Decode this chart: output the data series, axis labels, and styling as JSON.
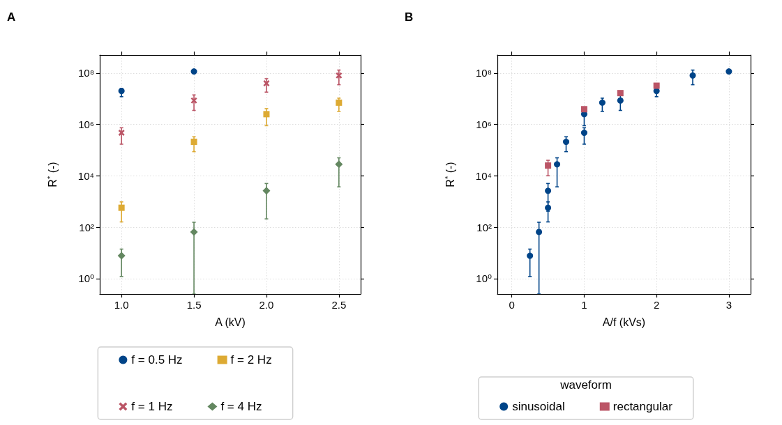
{
  "chart_data": [
    {
      "type": "scatter",
      "title": "A",
      "xlabel": "A (kV)",
      "ylabel": "R$^{*}$ (-)",
      "log": "y",
      "grid": true,
      "legend": "bottom",
      "xlim": [
        0.85,
        2.65
      ],
      "xticks": [
        {
          "value": 1,
          "label": "1.0"
        },
        {
          "value": 1.5,
          "label": "1.5"
        },
        {
          "value": 2,
          "label": "2.0"
        },
        {
          "value": 2.5,
          "label": "2.5"
        }
      ],
      "ylim": [
        0.25,
        500000000.0
      ],
      "yticks": [
        {
          "value": 1,
          "label": "10⁰"
        },
        {
          "value": 100,
          "label": "10²"
        },
        {
          "value": 10000,
          "label": "10⁴"
        },
        {
          "value": 1000000,
          "label": "10⁶"
        },
        {
          "value": 100000000,
          "label": "10⁸"
        }
      ],
      "series": [
        {
          "name": "f = 0.5 Hz",
          "color": "#004488",
          "marker": "circle",
          "x": [
            1,
            1.5
          ],
          "values": [
            20000000.0,
            115000000.0
          ],
          "errors": [
            [
              12000000.0,
              25000000.0
            ],
            null
          ]
        },
        {
          "name": "f = 1 Hz",
          "color": "#bb5566",
          "marker": "cross",
          "x": [
            1,
            1.5,
            2,
            2.5
          ],
          "values": [
            470000.0,
            8500000.0,
            40000000.0,
            80000000.0
          ],
          "errors": [
            [
              170000.0,
              740000.0
            ],
            [
              3500000.0,
              14000000.0
            ],
            [
              18000000.0,
              60000000.0
            ],
            [
              35000000.0,
              130000000.0
            ]
          ]
        },
        {
          "name": "f = 2 Hz",
          "color": "#ddaa33",
          "marker": "square",
          "x": [
            1,
            1.5,
            2,
            2.5
          ],
          "values": [
            570,
            210000.0,
            2500000.0,
            7000000.0
          ],
          "errors": [
            [
              160,
              960
            ],
            [
              87000.0,
              330000.0
            ],
            [
              890000.0,
              4100000.0
            ],
            [
              3200000.0,
              10500000.0
            ]
          ]
        },
        {
          "name": "f = 4 Hz",
          "color": "#638760",
          "marker": "diamond",
          "x": [
            1,
            1.5,
            2,
            2.5
          ],
          "values": [
            7.7,
            65,
            2600,
            28000.0
          ],
          "errors": [
            [
              1.2,
              14
            ],
            [
              0.25,
              155
            ],
            [
              210,
              5000
            ],
            [
              3700,
              50000.0
            ]
          ]
        }
      ]
    },
    {
      "type": "scatter",
      "title": "B",
      "xlabel": "A/f (kVs)",
      "ylabel": "R$^{*}$ (-)",
      "log": "y",
      "grid": true,
      "legend": "bottom",
      "legend_title": "waveform",
      "xlim": [
        -0.2,
        3.3
      ],
      "xticks": [
        0,
        1,
        2,
        3
      ],
      "ylim": [
        0.25,
        500000000.0
      ],
      "yticks": [
        {
          "value": 1,
          "label": "10⁰"
        },
        {
          "value": 100,
          "label": "10²"
        },
        {
          "value": 10000,
          "label": "10⁴"
        },
        {
          "value": 1000000,
          "label": "10⁶"
        },
        {
          "value": 100000000,
          "label": "10⁸"
        }
      ],
      "series": [
        {
          "name": "sinusoidal",
          "color": "#004488",
          "marker": "circle",
          "x": [
            0.25,
            0.375,
            0.5,
            0.5,
            0.625,
            0.75,
            1,
            1,
            1.25,
            1.5,
            2,
            2.5,
            3
          ],
          "values": [
            7.7,
            65,
            2600,
            570,
            28000.0,
            210000.0,
            470000.0,
            2500000.0,
            7000000.0,
            8500000.0,
            20000000.0,
            80000000.0,
            115000000.0
          ],
          "errors": [
            [
              1.2,
              14
            ],
            [
              0.25,
              155
            ],
            [
              420,
              5000
            ],
            [
              160,
              960
            ],
            [
              3700,
              50000.0
            ],
            [
              87000.0,
              330000.0
            ],
            [
              170000.0,
              740000.0
            ],
            [
              890000.0,
              4100000.0
            ],
            [
              3200000.0,
              10500000.0
            ],
            [
              3500000.0,
              14000000.0
            ],
            [
              12000000.0,
              25000000.0
            ],
            [
              35000000.0,
              130000000.0
            ],
            null
          ]
        },
        {
          "name": "rectangular",
          "color": "#bb5566",
          "marker": "square",
          "x": [
            0.5,
            1,
            1.5,
            2
          ],
          "values": [
            25000.0,
            3900000.0,
            16500000.0,
            32000000.0
          ],
          "errors": [
            [
              10000.0,
              40000.0
            ],
            null,
            null,
            null
          ]
        }
      ]
    }
  ]
}
